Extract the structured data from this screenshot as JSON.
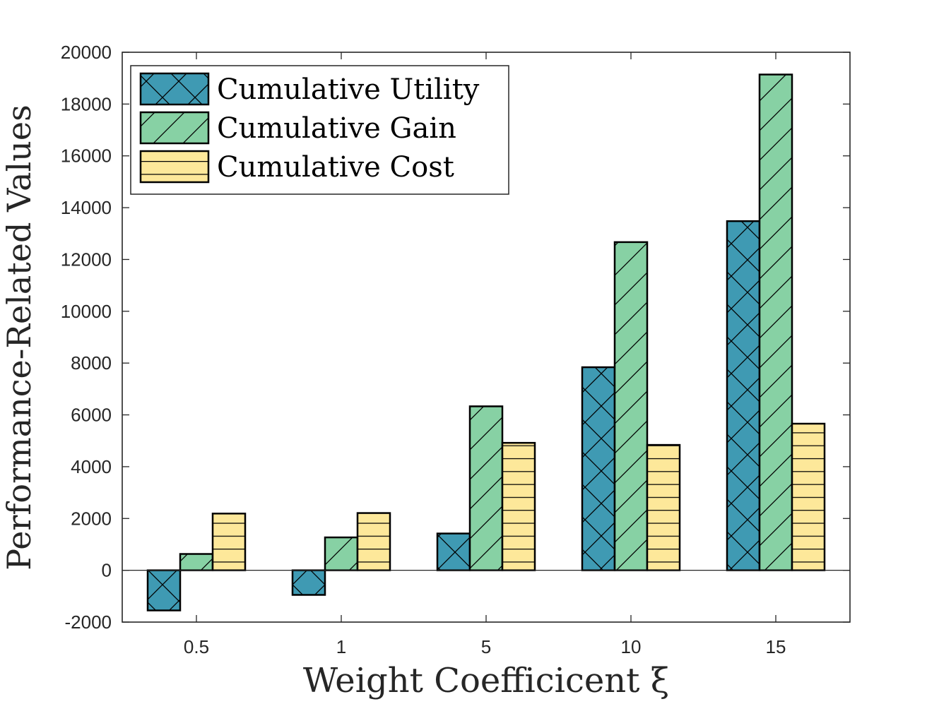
{
  "chart_data": {
    "type": "bar",
    "title": "",
    "xlabel": "Weight Coefficicent ξ",
    "ylabel": "Performance-Related Values",
    "categories": [
      "0.5",
      "1",
      "5",
      "10",
      "15"
    ],
    "ylim": [
      -2000,
      20000
    ],
    "yticks": [
      -2000,
      0,
      2000,
      4000,
      6000,
      8000,
      10000,
      12000,
      14000,
      16000,
      18000,
      20000
    ],
    "legend_position": "top-left",
    "grid": false,
    "series": [
      {
        "name": "Cumulative Utility",
        "values": [
          -1550,
          -950,
          1420,
          7840,
          13480
        ],
        "color": "#3f9ab3",
        "hatch": "crosshatch"
      },
      {
        "name": "Cumulative Gain",
        "values": [
          630,
          1270,
          6330,
          12670,
          19140
        ],
        "color": "#87d1a4",
        "hatch": "diagonal"
      },
      {
        "name": "Cumulative Cost",
        "values": [
          2190,
          2210,
          4920,
          4840,
          5660
        ],
        "color": "#fde89a",
        "hatch": "horizontal"
      }
    ]
  }
}
